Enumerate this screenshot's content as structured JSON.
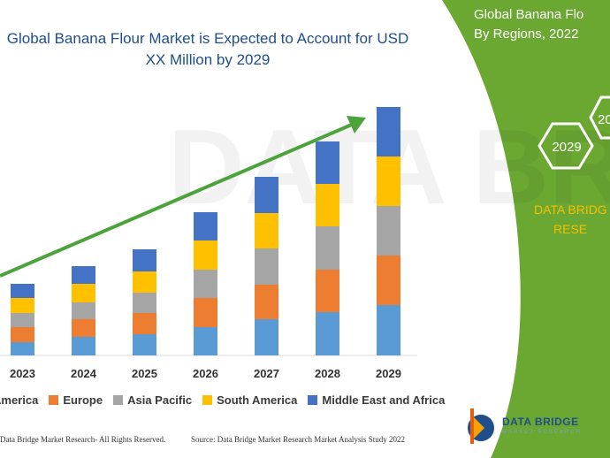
{
  "title": "Global Banana Flour Market is Expected to Account for USD XX Million by 2029",
  "right_panel": {
    "title_line1": "Global Banana Flo",
    "title_line2": "By Regions, 2022",
    "hex_label_1": "2029",
    "hex_label_2": "20",
    "brand_line1": "DATA BRIDG",
    "brand_line2": "RESE"
  },
  "footer": {
    "left": "Data Bridge Market Research- All Rights Reserved.",
    "source": "Source: Data Bridge Market Research Market Analysis Study 2022"
  },
  "logo": {
    "name": "DATA BRIDGE",
    "tagline": "MARKET RESEARCH"
  },
  "colors": {
    "north_america": "#5b9bd5",
    "europe": "#ed7d31",
    "asia_pacific": "#a5a5a5",
    "south_america": "#ffc000",
    "mea": "#4472c4",
    "arrow": "#4ca33c",
    "panel_green": "#6aa832",
    "title_blue": "#1f4e8c"
  },
  "chart_data": {
    "type": "bar",
    "stacked": true,
    "categories": [
      "2023",
      "2024",
      "2025",
      "2026",
      "2027",
      "2028",
      "2029"
    ],
    "series": [
      {
        "name": "North America",
        "legend_label": "America",
        "color": "#5b9bd5",
        "values": [
          15,
          21,
          24,
          32,
          41,
          49,
          57
        ]
      },
      {
        "name": "Europe",
        "color": "#ed7d31",
        "values": [
          17,
          20,
          24,
          33,
          39,
          48,
          56
        ]
      },
      {
        "name": "Asia Pacific",
        "color": "#a5a5a5",
        "values": [
          16,
          19,
          23,
          32,
          41,
          49,
          56
        ]
      },
      {
        "name": "South America",
        "color": "#ffc000",
        "values": [
          17,
          21,
          24,
          33,
          40,
          48,
          56
        ]
      },
      {
        "name": "Middle East and Africa",
        "color": "#4472c4",
        "values": [
          16,
          20,
          25,
          32,
          41,
          48,
          56
        ]
      }
    ],
    "annotation": "upward trend arrow",
    "legend_placement": "bottom"
  }
}
